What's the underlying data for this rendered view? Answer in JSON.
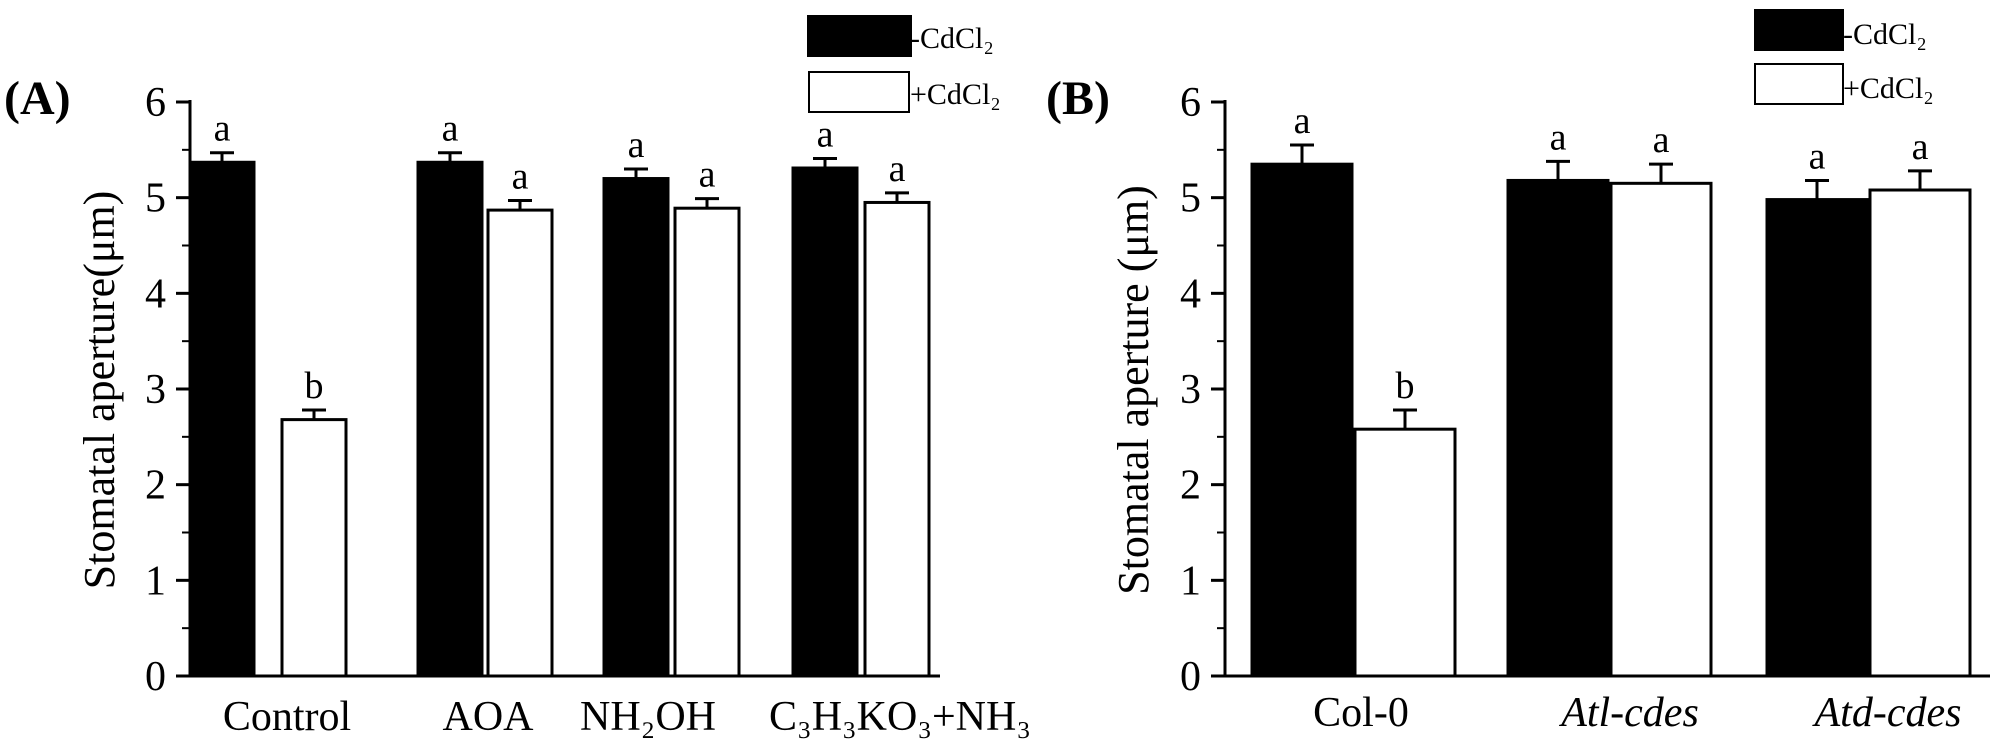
{
  "chart_data": [
    {
      "type": "bar",
      "panel_label": "(A)",
      "ylabel": "Stomatal aperture(μm)",
      "ylim": [
        0,
        6
      ],
      "yticks": [
        0,
        1,
        2,
        3,
        4,
        5,
        6
      ],
      "categories": [
        "Control",
        "AOA",
        "NH₂OH",
        "C₃H₃KO₃+NH₃"
      ],
      "series": [
        {
          "name": "-CdCl₂",
          "color": "#000000",
          "values": [
            5.37,
            5.37,
            5.2,
            5.31
          ],
          "errors": [
            0.1,
            0.1,
            0.1,
            0.1
          ],
          "labels": [
            "a",
            "a",
            "a",
            "a"
          ]
        },
        {
          "name": "+CdCl₂",
          "color": "#ffffff",
          "values": [
            2.68,
            4.87,
            4.89,
            4.95
          ],
          "errors": [
            0.1,
            0.1,
            0.1,
            0.1
          ],
          "labels": [
            "b",
            "a",
            "a",
            "a"
          ]
        }
      ]
    },
    {
      "type": "bar",
      "panel_label": "(B)",
      "ylabel": "Stomatal aperture (μm)",
      "ylim": [
        0,
        6
      ],
      "yticks": [
        0,
        1,
        2,
        3,
        4,
        5,
        6
      ],
      "categories": [
        "Col-0",
        "Atl-cdes",
        "Atd-cdes"
      ],
      "italic_categories": [
        false,
        true,
        true
      ],
      "series": [
        {
          "name": "-CdCl₂",
          "color": "#000000",
          "values": [
            5.35,
            5.18,
            4.98
          ],
          "errors": [
            0.2,
            0.2,
            0.2
          ],
          "labels": [
            "a",
            "a",
            "a"
          ]
        },
        {
          "name": "+CdCl₂",
          "color": "#ffffff",
          "values": [
            2.58,
            5.15,
            5.08
          ],
          "errors": [
            0.2,
            0.2,
            0.2
          ],
          "labels": [
            "b",
            "a",
            "a"
          ]
        }
      ]
    }
  ]
}
